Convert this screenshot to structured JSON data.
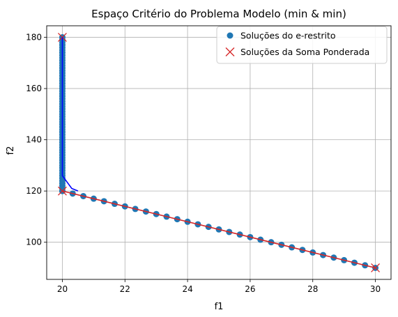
{
  "chart_data": {
    "type": "scatter",
    "title": "Espaço Critério do Problema Modelo (min & min)",
    "xlabel": "f1",
    "ylabel": "f2",
    "xlim": [
      19.5,
      30.5
    ],
    "ylim": [
      85.5,
      184.5
    ],
    "xticks": [
      20,
      22,
      24,
      26,
      28,
      30
    ],
    "yticks": [
      100,
      120,
      140,
      160,
      180
    ],
    "grid": true,
    "legend_position": "upper right",
    "series": [
      {
        "name": "Soluções do e-restrito",
        "kind": "marker-circle",
        "color": "#1f77b4",
        "x": [
          20,
          20,
          20,
          20,
          20,
          20,
          20,
          20,
          20,
          20,
          20,
          20,
          20,
          20,
          20,
          20,
          20,
          20,
          20,
          20,
          20,
          20,
          20,
          20,
          20,
          20,
          20,
          20,
          20,
          20,
          20,
          20,
          20,
          20,
          20,
          20,
          20,
          20,
          20,
          20,
          20,
          20,
          20,
          20,
          20,
          20,
          20,
          20,
          20,
          20,
          20,
          20,
          20,
          20,
          20,
          20,
          20,
          20,
          20,
          20,
          20,
          20,
          20.33,
          20.67,
          21.0,
          21.33,
          21.67,
          22.0,
          22.33,
          22.67,
          23.0,
          23.33,
          23.67,
          24.0,
          24.33,
          24.67,
          25.0,
          25.33,
          25.67,
          26.0,
          26.33,
          26.67,
          27.0,
          27.33,
          27.67,
          28.0,
          28.33,
          28.67,
          29.0,
          29.33,
          29.67,
          30.0
        ],
        "y": [
          180,
          179,
          178,
          177,
          176,
          175,
          174,
          173,
          172,
          171,
          170,
          169,
          168,
          167,
          166,
          165,
          164,
          163,
          162,
          161,
          160,
          159,
          158,
          157,
          156,
          155,
          154,
          153,
          152,
          151,
          150,
          149,
          148,
          147,
          146,
          145,
          144,
          143,
          142,
          141,
          140,
          139,
          138,
          137,
          136,
          135,
          134,
          133,
          132,
          131,
          130,
          129,
          128,
          127,
          126,
          125,
          124,
          123,
          122,
          121,
          120,
          120,
          119,
          118,
          117,
          116,
          115,
          114,
          113,
          112,
          111,
          110,
          109,
          108,
          107,
          106,
          105,
          104,
          103,
          102,
          101,
          100,
          99,
          98,
          97,
          96,
          95,
          94,
          93,
          92,
          91,
          90
        ]
      },
      {
        "name": "Soluções da Soma Ponderada",
        "kind": "marker-x",
        "color": "#d62728",
        "x": [
          20,
          20,
          30
        ],
        "y": [
          180,
          120,
          90
        ]
      }
    ],
    "lines": [
      {
        "color": "#0000ff",
        "x": [
          20,
          20,
          20.3,
          20.5
        ],
        "y": [
          180,
          126,
          121,
          120
        ]
      },
      {
        "color": "#d62728",
        "x": [
          20,
          30
        ],
        "y": [
          120,
          90
        ]
      }
    ]
  }
}
